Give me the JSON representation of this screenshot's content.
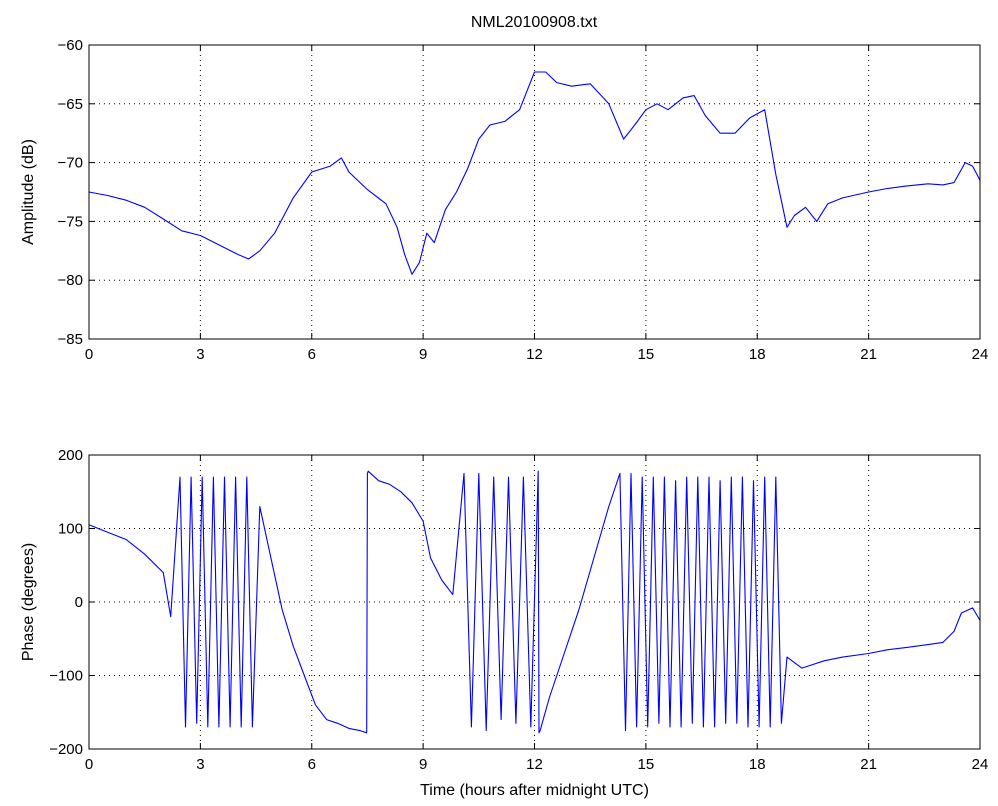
{
  "figure": {
    "title": "NML20100908.txt",
    "background_color": "#ffffff",
    "line_color": "#0000ff",
    "grid_color": "#000000"
  },
  "chart_data": [
    {
      "type": "line",
      "title": "NML20100908.txt",
      "xlabel": "",
      "ylabel": "Amplitude (dB)",
      "xlim": [
        0,
        24
      ],
      "ylim": [
        -85,
        -60
      ],
      "xticks": [
        0,
        3,
        6,
        9,
        12,
        15,
        18,
        21,
        24
      ],
      "yticks": [
        -85,
        -80,
        -75,
        -70,
        -65,
        -60
      ],
      "xtick_labels": [
        "0",
        "3",
        "6",
        "9",
        "12",
        "15",
        "18",
        "21",
        "24"
      ],
      "ytick_labels": [
        "−85",
        "−80",
        "−75",
        "−70",
        "−65",
        "−60"
      ],
      "grid": "dotted",
      "series": [
        {
          "color": "#0000ff",
          "x": [
            0,
            0.5,
            1.0,
            1.5,
            2.0,
            2.5,
            3.0,
            3.5,
            4.0,
            4.3,
            4.6,
            5.0,
            5.5,
            6.0,
            6.5,
            6.8,
            7.0,
            7.5,
            8.0,
            8.3,
            8.5,
            8.7,
            8.9,
            9.1,
            9.3,
            9.6,
            9.9,
            10.2,
            10.5,
            10.8,
            11.2,
            11.6,
            12.0,
            12.3,
            12.6,
            13.0,
            13.5,
            14.0,
            14.4,
            14.7,
            15.0,
            15.3,
            15.6,
            16.0,
            16.3,
            16.6,
            17.0,
            17.4,
            17.8,
            18.2,
            18.5,
            18.8,
            19.0,
            19.3,
            19.6,
            19.9,
            20.3,
            21.0,
            21.5,
            22.0,
            22.3,
            22.6,
            23.0,
            23.3,
            23.6,
            23.8,
            24.0
          ],
          "y": [
            -72.5,
            -72.8,
            -73.2,
            -73.8,
            -74.8,
            -75.8,
            -76.2,
            -77.0,
            -77.8,
            -78.2,
            -77.5,
            -76.0,
            -73.0,
            -70.8,
            -70.3,
            -69.6,
            -70.8,
            -72.3,
            -73.5,
            -75.5,
            -77.8,
            -79.5,
            -78.5,
            -76.0,
            -76.8,
            -74.0,
            -72.5,
            -70.5,
            -68.0,
            -66.8,
            -66.5,
            -65.5,
            -62.3,
            -62.3,
            -63.2,
            -63.5,
            -63.3,
            -65.0,
            -68.0,
            -66.8,
            -65.5,
            -65.0,
            -65.5,
            -64.5,
            -64.3,
            -66.0,
            -67.5,
            -67.5,
            -66.2,
            -65.5,
            -71.0,
            -75.5,
            -74.5,
            -73.8,
            -75.0,
            -73.5,
            -73.0,
            -72.5,
            -72.2,
            -72.0,
            -71.9,
            -71.8,
            -71.9,
            -71.7,
            -70.0,
            -70.3,
            -71.5
          ]
        }
      ]
    },
    {
      "type": "line",
      "title": "",
      "xlabel": "Time (hours after midnight UTC)",
      "ylabel": "Phase (degrees)",
      "xlim": [
        0,
        24
      ],
      "ylim": [
        -200,
        200
      ],
      "xticks": [
        0,
        3,
        6,
        9,
        12,
        15,
        18,
        21,
        24
      ],
      "yticks": [
        -200,
        -100,
        0,
        100,
        200
      ],
      "xtick_labels": [
        "0",
        "3",
        "6",
        "9",
        "12",
        "15",
        "18",
        "21",
        "24"
      ],
      "ytick_labels": [
        "−200",
        "−100",
        "0",
        "100",
        "200"
      ],
      "grid": "dotted",
      "series": [
        {
          "color": "#0000ff",
          "x": [
            0,
            0.5,
            1.0,
            1.5,
            2.0,
            2.2,
            2.45,
            2.6,
            2.75,
            2.9,
            3.05,
            3.2,
            3.35,
            3.5,
            3.65,
            3.8,
            3.95,
            4.1,
            4.25,
            4.4,
            4.6,
            4.9,
            5.2,
            5.5,
            5.8,
            6.1,
            6.4,
            6.7,
            7.0,
            7.3,
            7.48,
            7.5,
            7.52,
            7.8,
            8.1,
            8.4,
            8.7,
            9.0,
            9.2,
            9.5,
            9.8,
            10.1,
            10.3,
            10.5,
            10.7,
            10.9,
            11.1,
            11.3,
            11.5,
            11.7,
            11.9,
            12.1,
            12.12,
            12.15,
            12.4,
            12.8,
            13.2,
            13.6,
            14.0,
            14.3,
            14.45,
            14.6,
            14.75,
            14.9,
            15.05,
            15.2,
            15.35,
            15.5,
            15.65,
            15.8,
            15.95,
            16.1,
            16.25,
            16.4,
            16.55,
            16.7,
            16.85,
            17.0,
            17.15,
            17.3,
            17.45,
            17.6,
            17.75,
            17.9,
            18.05,
            18.2,
            18.35,
            18.5,
            18.65,
            18.8,
            19.2,
            19.5,
            19.8,
            20.3,
            21.0,
            21.5,
            22.0,
            22.3,
            22.6,
            23.0,
            23.3,
            23.5,
            23.8,
            24.0
          ],
          "y": [
            105,
            95,
            85,
            65,
            40,
            -20,
            170,
            -170,
            170,
            -165,
            170,
            -170,
            170,
            -170,
            170,
            -170,
            170,
            -170,
            170,
            -170,
            130,
            60,
            -10,
            -60,
            -100,
            -140,
            -160,
            -165,
            -172,
            -175,
            -178,
            175,
            178,
            165,
            160,
            150,
            135,
            110,
            60,
            30,
            10,
            175,
            -170,
            175,
            -175,
            170,
            -160,
            170,
            -165,
            170,
            -170,
            178,
            -178,
            -175,
            -130,
            -70,
            -10,
            60,
            130,
            175,
            -175,
            175,
            -170,
            170,
            -170,
            170,
            -165,
            170,
            -170,
            165,
            -170,
            170,
            -165,
            170,
            -170,
            170,
            -170,
            165,
            -165,
            170,
            -165,
            170,
            -170,
            165,
            -170,
            170,
            -170,
            170,
            -165,
            -75,
            -90,
            -85,
            -80,
            -75,
            -70,
            -65,
            -62,
            -60,
            -58,
            -55,
            -40,
            -15,
            -8,
            -25
          ]
        }
      ]
    }
  ]
}
